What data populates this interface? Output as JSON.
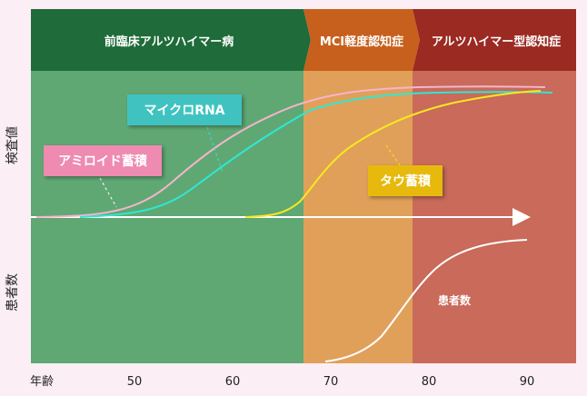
{
  "phases": [
    {
      "title": "前臨床アルツハイマー病",
      "header_color": "#1f6b3a",
      "body_color": "#5fa874"
    },
    {
      "title": "MCI軽度認知症",
      "header_color": "#c7601c",
      "body_color": "#e0a05a"
    },
    {
      "title": "アルツハイマー型認知症",
      "header_color": "#9b2a22",
      "body_color": "#c96a5a"
    }
  ],
  "y_axis_labels": {
    "top": "検査値",
    "bottom": "患者数"
  },
  "x_axis": {
    "label": "年齢",
    "ticks": [
      {
        "value": 50,
        "label": "50"
      },
      {
        "value": 60,
        "label": "60"
      },
      {
        "value": 70,
        "label": "70"
      },
      {
        "value": 80,
        "label": "80"
      },
      {
        "value": 90,
        "label": "90"
      }
    ]
  },
  "curve_labels": {
    "amyloid": {
      "text": "アミロイド蓄積",
      "color": "#ef8ab0"
    },
    "microrna": {
      "text": "マイクロRNA",
      "color": "#3fc3c0"
    },
    "tau": {
      "text": "タウ蓄積",
      "color": "#e7b90d"
    }
  },
  "patients_label": "患者数",
  "curve_colors": {
    "amyloid": "#f6b4cc",
    "microrna": "#2ee8d3",
    "tau": "#f7ea1c",
    "patients": "#ffffff"
  }
}
